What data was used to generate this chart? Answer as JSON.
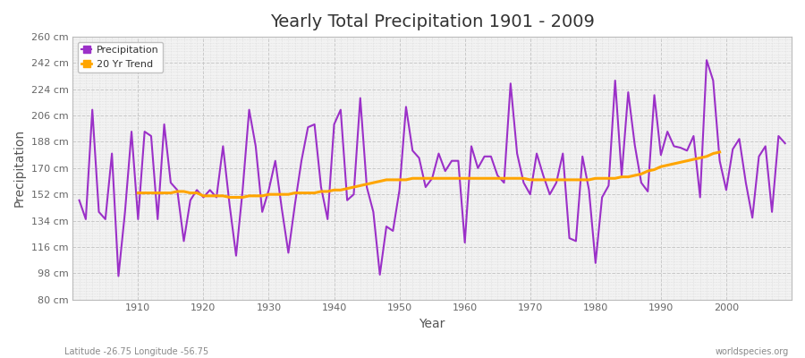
{
  "title": "Yearly Total Precipitation 1901 - 2009",
  "xlabel": "Year",
  "ylabel": "Precipitation",
  "footnote_left": "Latitude -26.75 Longitude -56.75",
  "footnote_right": "worldspecies.org",
  "ylim": [
    80,
    260
  ],
  "yticks": [
    80,
    98,
    116,
    134,
    152,
    170,
    188,
    206,
    224,
    242,
    260
  ],
  "ytick_labels": [
    "80 cm",
    "98 cm",
    "116 cm",
    "134 cm",
    "152 cm",
    "170 cm",
    "188 cm",
    "206 cm",
    "224 cm",
    "242 cm",
    "260 cm"
  ],
  "precip_color": "#9B30C8",
  "trend_color": "#FFA500",
  "bg_color": "#F0F0F0",
  "plot_bg_color": "#F0F0F0",
  "grid_color": "#CCCCCC",
  "years": [
    1901,
    1902,
    1903,
    1904,
    1905,
    1906,
    1907,
    1908,
    1909,
    1910,
    1911,
    1912,
    1913,
    1914,
    1915,
    1916,
    1917,
    1918,
    1919,
    1920,
    1921,
    1922,
    1923,
    1924,
    1925,
    1926,
    1927,
    1928,
    1929,
    1930,
    1931,
    1932,
    1933,
    1934,
    1935,
    1936,
    1937,
    1938,
    1939,
    1940,
    1941,
    1942,
    1943,
    1944,
    1945,
    1946,
    1947,
    1948,
    1949,
    1950,
    1951,
    1952,
    1953,
    1954,
    1955,
    1956,
    1957,
    1958,
    1959,
    1960,
    1961,
    1962,
    1963,
    1964,
    1965,
    1966,
    1967,
    1968,
    1969,
    1970,
    1971,
    1972,
    1973,
    1974,
    1975,
    1976,
    1977,
    1978,
    1979,
    1980,
    1981,
    1982,
    1983,
    1984,
    1985,
    1986,
    1987,
    1988,
    1989,
    1990,
    1991,
    1992,
    1993,
    1994,
    1995,
    1996,
    1997,
    1998,
    1999,
    2000,
    2001,
    2002,
    2003,
    2004,
    2005,
    2006,
    2007,
    2008,
    2009
  ],
  "precipitation": [
    148,
    135,
    210,
    140,
    135,
    180,
    96,
    140,
    195,
    135,
    195,
    192,
    135,
    200,
    160,
    155,
    120,
    148,
    155,
    150,
    155,
    150,
    185,
    145,
    110,
    155,
    210,
    185,
    140,
    155,
    175,
    142,
    112,
    145,
    175,
    198,
    200,
    157,
    135,
    200,
    210,
    148,
    152,
    218,
    157,
    140,
    97,
    130,
    127,
    155,
    212,
    182,
    177,
    157,
    163,
    180,
    168,
    175,
    175,
    119,
    185,
    170,
    178,
    178,
    165,
    160,
    228,
    180,
    160,
    152,
    180,
    165,
    152,
    160,
    180,
    122,
    120,
    178,
    155,
    105,
    150,
    158,
    230,
    165,
    222,
    186,
    160,
    154,
    220,
    179,
    195,
    185,
    184,
    182,
    192,
    150,
    244,
    230,
    175,
    155,
    183,
    190,
    160,
    136,
    178,
    185,
    140,
    192,
    187
  ],
  "trend": [
    null,
    null,
    null,
    null,
    null,
    null,
    null,
    null,
    null,
    153,
    153,
    153,
    153,
    153,
    153,
    154,
    154,
    153,
    153,
    151,
    151,
    151,
    151,
    150,
    150,
    150,
    151,
    151,
    151,
    152,
    152,
    152,
    152,
    153,
    153,
    153,
    153,
    154,
    154,
    155,
    155,
    156,
    157,
    158,
    159,
    160,
    161,
    162,
    162,
    162,
    162,
    163,
    163,
    163,
    163,
    163,
    163,
    163,
    163,
    163,
    163,
    163,
    163,
    163,
    163,
    163,
    163,
    163,
    163,
    162,
    162,
    162,
    162,
    162,
    162,
    162,
    162,
    162,
    162,
    163,
    163,
    163,
    163,
    164,
    164,
    165,
    166,
    168,
    169,
    171,
    172,
    173,
    174,
    175,
    176,
    177,
    178,
    180,
    181,
    null,
    null,
    null,
    null,
    null,
    null,
    null,
    null,
    null,
    null
  ]
}
